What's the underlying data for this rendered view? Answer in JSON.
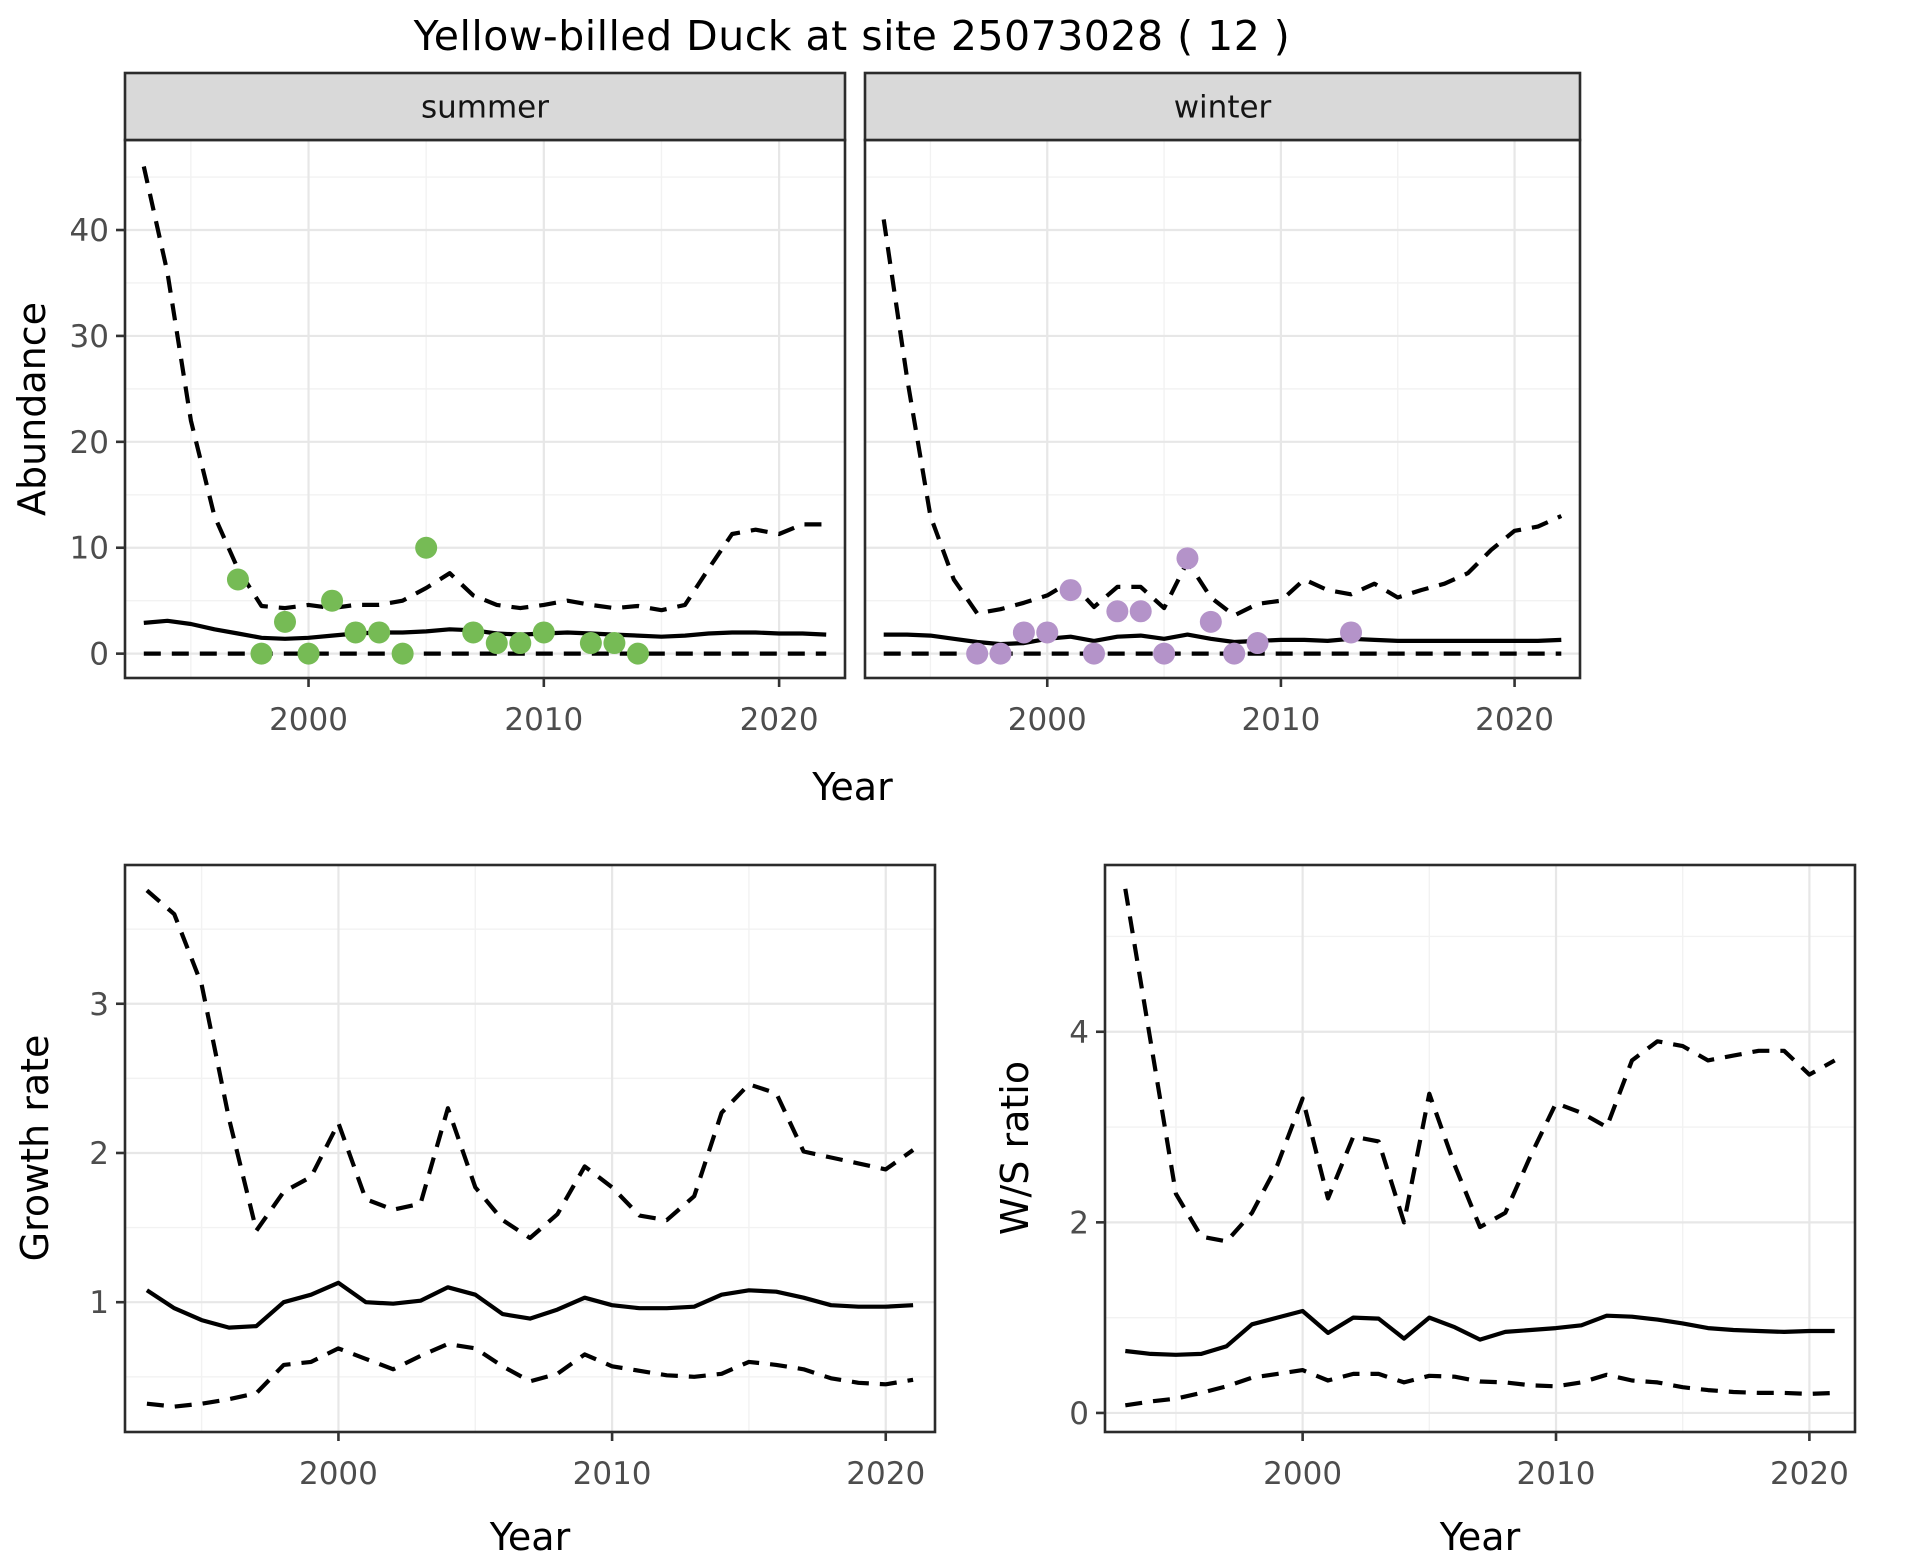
{
  "title": "Yellow-billed Duck at site 25073028 ( 12 )",
  "colors": {
    "summer_point": "#76BB55",
    "winter_point": "#B493C9",
    "line": "#000000",
    "grid_major": "#E7E7E7",
    "grid_minor": "#F2F2F2",
    "strip_bg": "#D9D9D9",
    "panel_border": "#2B2B2B",
    "tick_text": "#4D4D4D",
    "strip_text": "#141414"
  },
  "chart_data": [
    {
      "id": "abundance",
      "type": "line+scatter",
      "ylabel": "Abundance",
      "xlabel": "Year",
      "ylim": [
        -2.3,
        48.5
      ],
      "yticks": [
        0,
        10,
        20,
        30,
        40
      ],
      "yminor": [
        5,
        15,
        25,
        35,
        45
      ],
      "xlim": [
        1992.2,
        2022.8
      ],
      "xticks": [
        2000,
        2010,
        2020
      ],
      "xminor": [
        1995,
        2005,
        2015
      ],
      "years": [
        1993,
        1994,
        1995,
        1996,
        1997,
        1998,
        1999,
        2000,
        2001,
        2002,
        2003,
        2004,
        2005,
        2006,
        2007,
        2008,
        2009,
        2010,
        2011,
        2012,
        2013,
        2014,
        2015,
        2016,
        2017,
        2018,
        2019,
        2020,
        2021,
        2022
      ],
      "line_styles": {
        "median": "solid",
        "upper_ci": "dashed",
        "lower_ci": "dashed"
      },
      "facets": [
        {
          "label": "summer",
          "point_color_key": "summer_point",
          "median": [
            2.9,
            3.1,
            2.8,
            2.3,
            1.9,
            1.5,
            1.4,
            1.5,
            1.7,
            1.9,
            2.0,
            2.0,
            2.1,
            2.3,
            2.2,
            1.9,
            1.8,
            1.9,
            2.0,
            1.9,
            1.8,
            1.7,
            1.6,
            1.7,
            1.9,
            2.0,
            2.0,
            1.9,
            1.9,
            1.8
          ],
          "upper_ci": [
            46,
            36,
            22,
            13,
            8,
            4.5,
            4.3,
            4.6,
            4.3,
            4.6,
            4.6,
            5.0,
            6.2,
            7.6,
            5.5,
            4.6,
            4.3,
            4.6,
            5.0,
            4.6,
            4.3,
            4.5,
            4.1,
            4.6,
            8.0,
            11.3,
            11.7,
            11.3,
            12.2,
            12.2
          ],
          "lower_ci": [
            0,
            0,
            0,
            0,
            0,
            0,
            0,
            0,
            0,
            0,
            0,
            0,
            0,
            0,
            0,
            0,
            0,
            0,
            0,
            0,
            0,
            0,
            0,
            0,
            0,
            0,
            0,
            0,
            0,
            0
          ],
          "observed_points": [
            [
              1997,
              7
            ],
            [
              1998,
              0
            ],
            [
              1999,
              3
            ],
            [
              2000,
              0
            ],
            [
              2001,
              5
            ],
            [
              2002,
              2
            ],
            [
              2003,
              2
            ],
            [
              2004,
              0
            ],
            [
              2005,
              10
            ],
            [
              2007,
              2
            ],
            [
              2008,
              1
            ],
            [
              2009,
              1
            ],
            [
              2010,
              2
            ],
            [
              2012,
              1
            ],
            [
              2013,
              1
            ],
            [
              2014,
              0
            ]
          ]
        },
        {
          "label": "winter",
          "point_color_key": "winter_point",
          "median": [
            1.8,
            1.8,
            1.7,
            1.4,
            1.1,
            0.9,
            1.0,
            1.4,
            1.6,
            1.2,
            1.6,
            1.7,
            1.4,
            1.8,
            1.4,
            1.1,
            1.2,
            1.3,
            1.3,
            1.2,
            1.4,
            1.3,
            1.2,
            1.2,
            1.2,
            1.2,
            1.2,
            1.2,
            1.2,
            1.3
          ],
          "upper_ci": [
            41,
            26,
            13,
            7,
            3.8,
            4.2,
            4.8,
            5.5,
            6.8,
            4.4,
            6.3,
            6.3,
            4.3,
            8.7,
            5.3,
            3.6,
            4.7,
            5.0,
            7.0,
            6.0,
            5.6,
            6.6,
            5.3,
            6.0,
            6.6,
            7.6,
            9.8,
            11.6,
            12.0,
            13.0
          ],
          "lower_ci": [
            0,
            0,
            0,
            0,
            0,
            0,
            0,
            0,
            0,
            0,
            0,
            0,
            0,
            0,
            0,
            0,
            0,
            0,
            0,
            0,
            0,
            0,
            0,
            0,
            0,
            0,
            0,
            0,
            0,
            0
          ],
          "observed_points": [
            [
              1997,
              0
            ],
            [
              1998,
              0
            ],
            [
              1999,
              2
            ],
            [
              2000,
              2
            ],
            [
              2001,
              6
            ],
            [
              2002,
              0
            ],
            [
              2003,
              4
            ],
            [
              2004,
              4
            ],
            [
              2005,
              0
            ],
            [
              2006,
              9
            ],
            [
              2007,
              3
            ],
            [
              2008,
              0
            ],
            [
              2009,
              1
            ],
            [
              2013,
              2
            ]
          ]
        }
      ]
    },
    {
      "id": "growth_rate",
      "type": "line",
      "ylabel": "Growth rate",
      "xlabel": "Year",
      "ylim": [
        0.13,
        3.93
      ],
      "yticks": [
        1,
        2,
        3
      ],
      "yminor": [
        0.5,
        1.5,
        2.5,
        3.5
      ],
      "xlim": [
        1992.2,
        2021.8
      ],
      "xticks": [
        2000,
        2010,
        2020
      ],
      "xminor": [
        1995,
        2005,
        2015
      ],
      "years": [
        1993,
        1994,
        1995,
        1996,
        1997,
        1998,
        1999,
        2000,
        2001,
        2002,
        2003,
        2004,
        2005,
        2006,
        2007,
        2008,
        2009,
        2010,
        2011,
        2012,
        2013,
        2014,
        2015,
        2016,
        2017,
        2018,
        2019,
        2020,
        2021
      ],
      "median": [
        1.08,
        0.96,
        0.88,
        0.83,
        0.84,
        1.0,
        1.05,
        1.13,
        1.0,
        0.99,
        1.01,
        1.1,
        1.05,
        0.92,
        0.89,
        0.95,
        1.03,
        0.98,
        0.96,
        0.96,
        0.97,
        1.05,
        1.08,
        1.07,
        1.03,
        0.98,
        0.97,
        0.97,
        0.98
      ],
      "upper_ci": [
        3.76,
        3.6,
        3.13,
        2.23,
        1.48,
        1.74,
        1.84,
        2.2,
        1.69,
        1.62,
        1.66,
        2.3,
        1.77,
        1.55,
        1.43,
        1.59,
        1.91,
        1.77,
        1.58,
        1.55,
        1.71,
        2.27,
        2.46,
        2.4,
        2.01,
        1.97,
        1.93,
        1.89,
        2.02
      ],
      "lower_ci": [
        0.32,
        0.3,
        0.32,
        0.35,
        0.39,
        0.58,
        0.6,
        0.69,
        0.62,
        0.55,
        0.64,
        0.72,
        0.69,
        0.57,
        0.47,
        0.52,
        0.65,
        0.57,
        0.54,
        0.51,
        0.5,
        0.52,
        0.6,
        0.58,
        0.55,
        0.49,
        0.46,
        0.45,
        0.48
      ]
    },
    {
      "id": "ws_ratio",
      "type": "line",
      "ylabel": "W/S ratio",
      "xlabel": "Year",
      "ylim": [
        -0.2,
        5.75
      ],
      "yticks": [
        0,
        2,
        4
      ],
      "yminor": [
        1,
        3,
        5
      ],
      "xlim": [
        1992.2,
        2021.8
      ],
      "xticks": [
        2000,
        2010,
        2020
      ],
      "xminor": [
        1995,
        2005,
        2015
      ],
      "years": [
        1993,
        1994,
        1995,
        1996,
        1997,
        1998,
        1999,
        2000,
        2001,
        2002,
        2003,
        2004,
        2005,
        2006,
        2007,
        2008,
        2009,
        2010,
        2011,
        2012,
        2013,
        2014,
        2015,
        2016,
        2017,
        2018,
        2019,
        2020,
        2021
      ],
      "median": [
        0.65,
        0.62,
        0.61,
        0.62,
        0.7,
        0.93,
        1.0,
        1.07,
        0.84,
        1.0,
        0.99,
        0.78,
        1.0,
        0.9,
        0.77,
        0.85,
        0.87,
        0.89,
        0.92,
        1.02,
        1.01,
        0.98,
        0.94,
        0.89,
        0.87,
        0.86,
        0.85,
        0.86,
        0.86
      ],
      "upper_ci": [
        5.5,
        3.9,
        2.3,
        1.85,
        1.8,
        2.1,
        2.6,
        3.3,
        2.25,
        2.9,
        2.85,
        2.0,
        3.35,
        2.6,
        1.95,
        2.1,
        2.7,
        3.25,
        3.15,
        3.0,
        3.7,
        3.9,
        3.85,
        3.7,
        3.75,
        3.8,
        3.8,
        3.55,
        3.7
      ],
      "lower_ci": [
        0.08,
        0.12,
        0.15,
        0.21,
        0.28,
        0.37,
        0.41,
        0.45,
        0.34,
        0.41,
        0.41,
        0.32,
        0.39,
        0.38,
        0.33,
        0.32,
        0.29,
        0.28,
        0.32,
        0.4,
        0.34,
        0.32,
        0.27,
        0.24,
        0.22,
        0.21,
        0.21,
        0.2,
        0.21
      ]
    }
  ]
}
